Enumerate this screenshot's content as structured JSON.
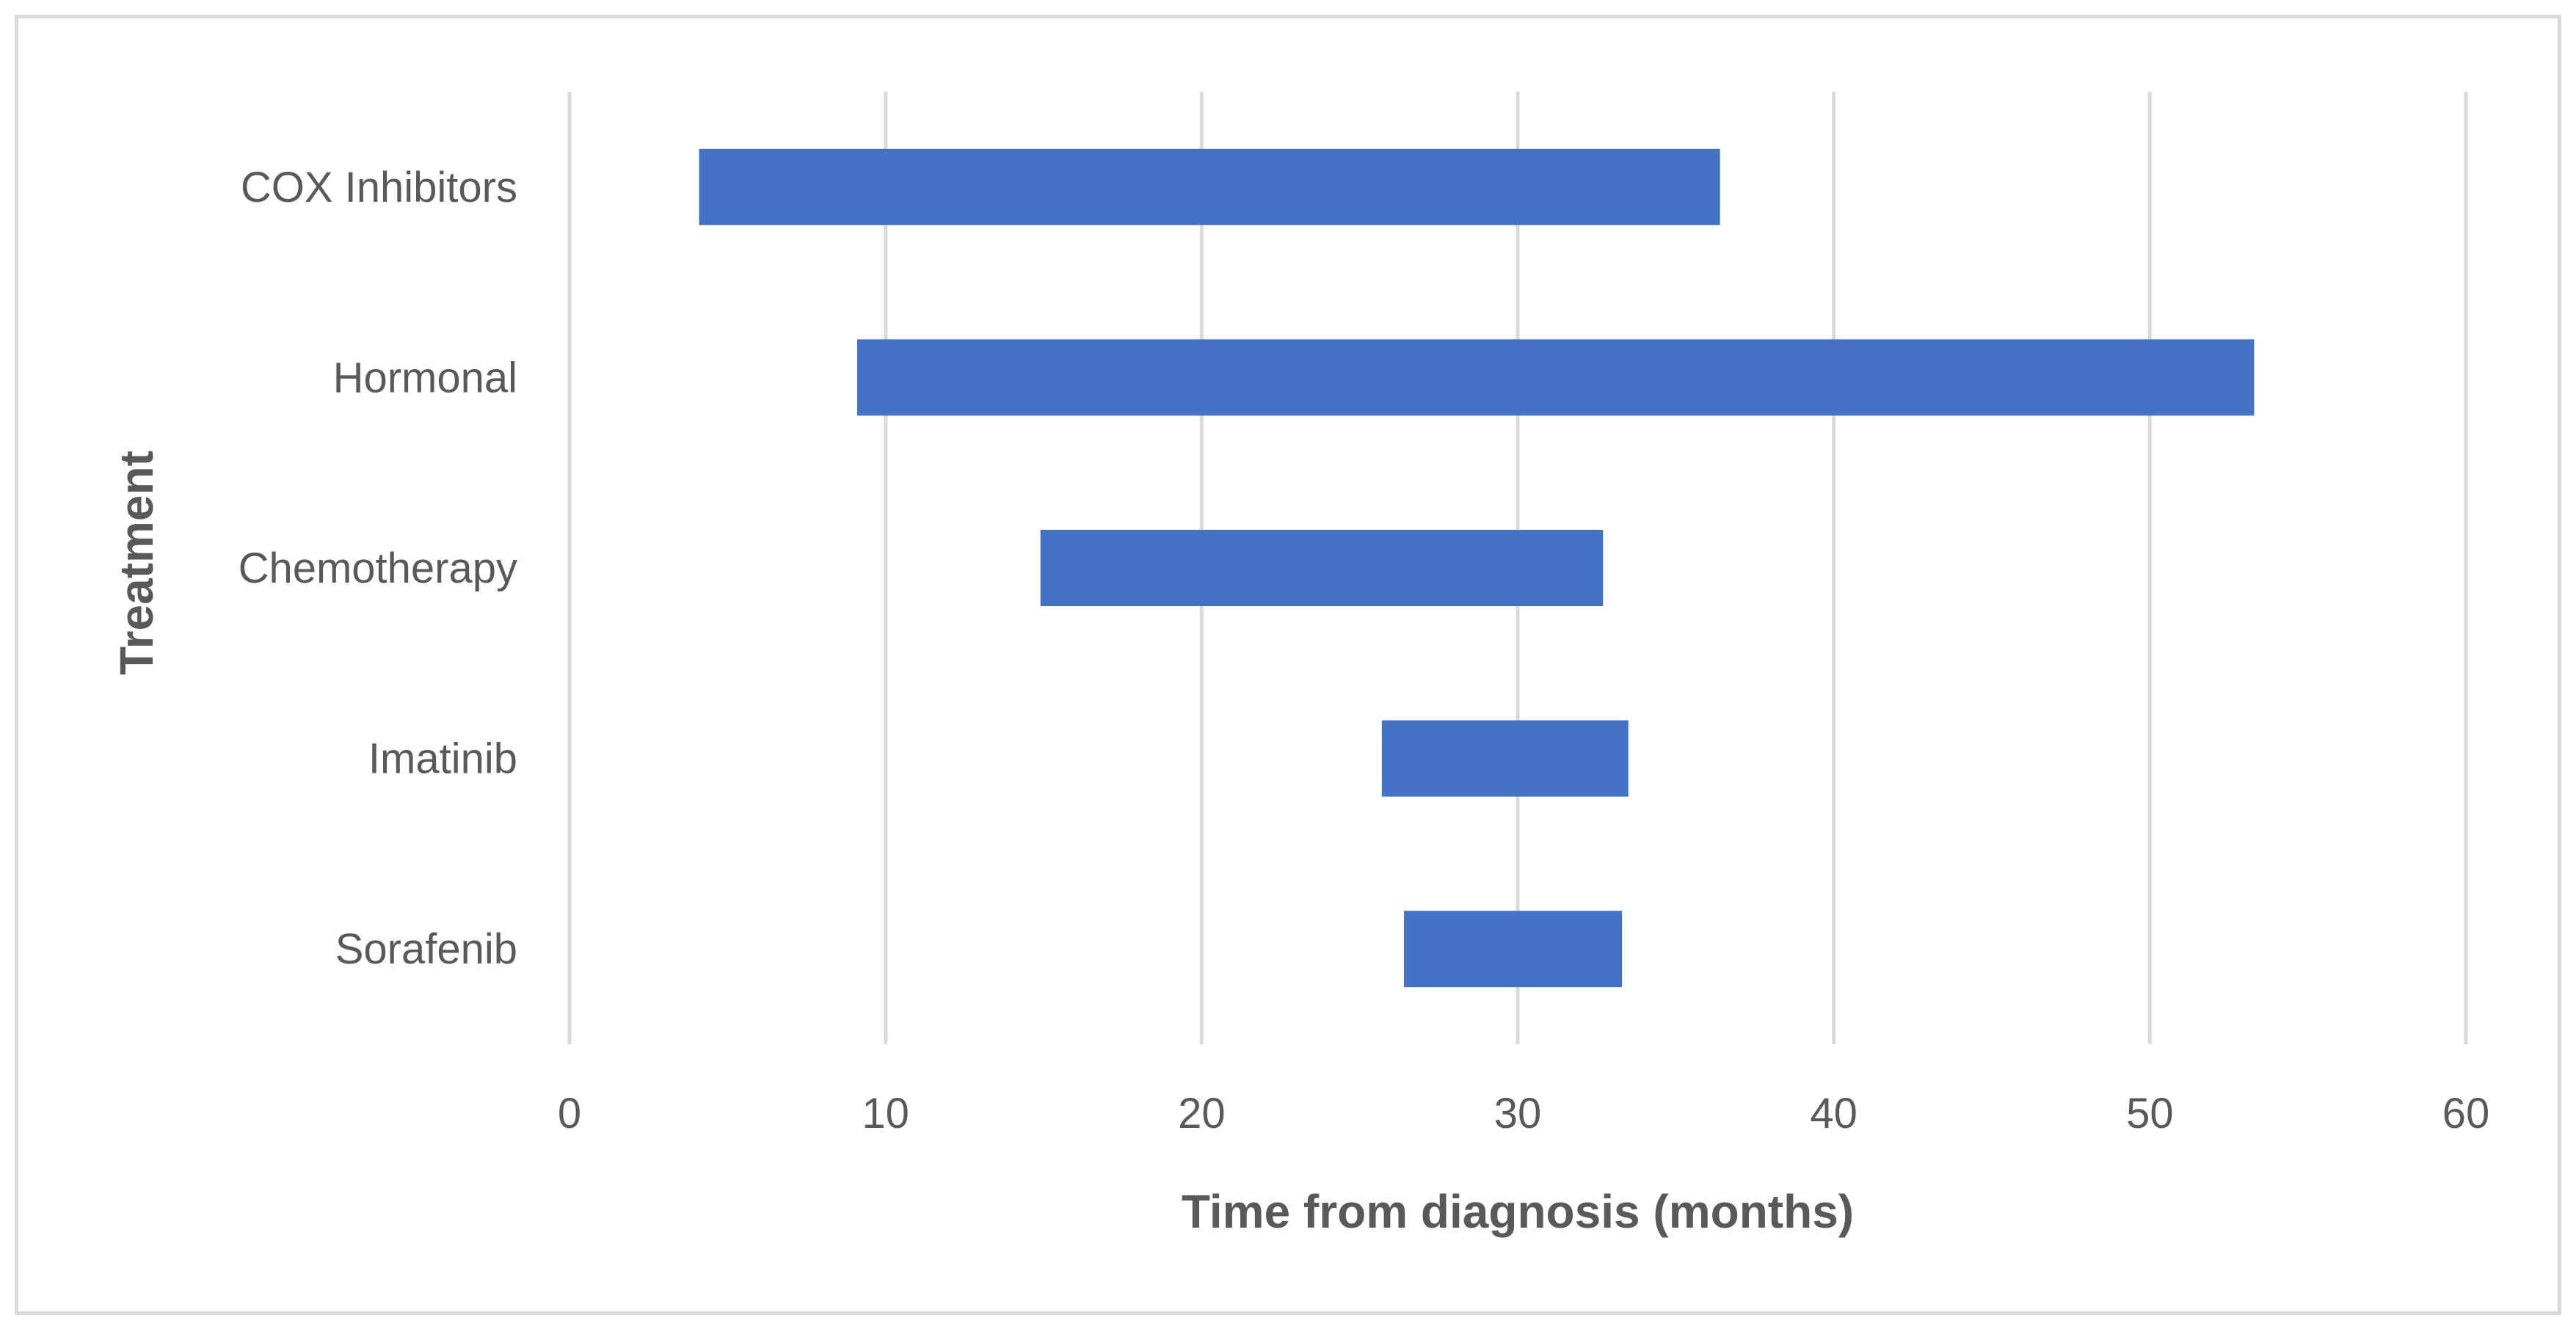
{
  "chart_data": {
    "type": "bar",
    "orientation": "horizontal",
    "subtype": "floating-range",
    "title": "",
    "xlabel": "Time from diagnosis (months)",
    "ylabel": "Treatment",
    "xlim": [
      0,
      60
    ],
    "xticks": [
      0,
      10,
      20,
      30,
      40,
      50,
      60
    ],
    "grid": true,
    "legend": "none",
    "categories": [
      "COX Inhibitors",
      "Hormonal",
      "Chemotherapy",
      "Imatinib",
      "Sorafenib"
    ],
    "series": [
      {
        "ranges": [
          {
            "start": 4.1,
            "end": 36.4
          },
          {
            "start": 9.1,
            "end": 53.3
          },
          {
            "start": 14.9,
            "end": 32.7
          },
          {
            "start": 25.7,
            "end": 33.5
          },
          {
            "start": 26.4,
            "end": 33.3
          }
        ],
        "color": "#4472c4"
      }
    ]
  }
}
